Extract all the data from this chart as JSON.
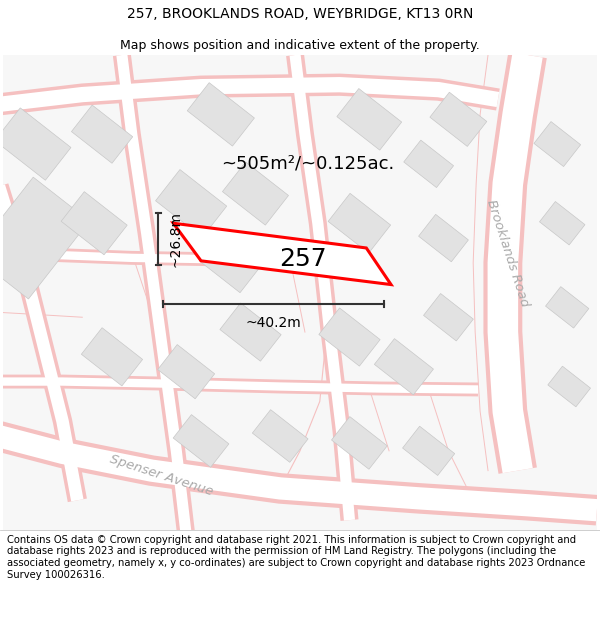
{
  "title": "257, BROOKLANDS ROAD, WEYBRIDGE, KT13 0RN",
  "subtitle": "Map shows position and indicative extent of the property.",
  "footer": "Contains OS data © Crown copyright and database right 2021. This information is subject to Crown copyright and database rights 2023 and is reproduced with the permission of HM Land Registry. The polygons (including the associated geometry, namely x, y co-ordinates) are subject to Crown copyright and database rights 2023 Ordnance Survey 100026316.",
  "property_label": "257",
  "area_label": "~505m²/~0.125ac.",
  "width_label": "~40.2m",
  "height_label": "~26.8m",
  "street_label_1": "Brooklands Road",
  "street_label_2": "Spenser Avenue",
  "map_bg": "#f7f7f7",
  "road_color": "#f5c0c0",
  "road_fill": "#ffffff",
  "building_fill": "#e2e2e2",
  "building_edge": "#c8c8c8",
  "prop_edge": "#ff0000",
  "prop_fill": "#ffffff",
  "dim_color": "#333333",
  "street_text_color": "#aaaaaa",
  "title_fs": 10,
  "subtitle_fs": 9,
  "footer_fs": 7.2
}
